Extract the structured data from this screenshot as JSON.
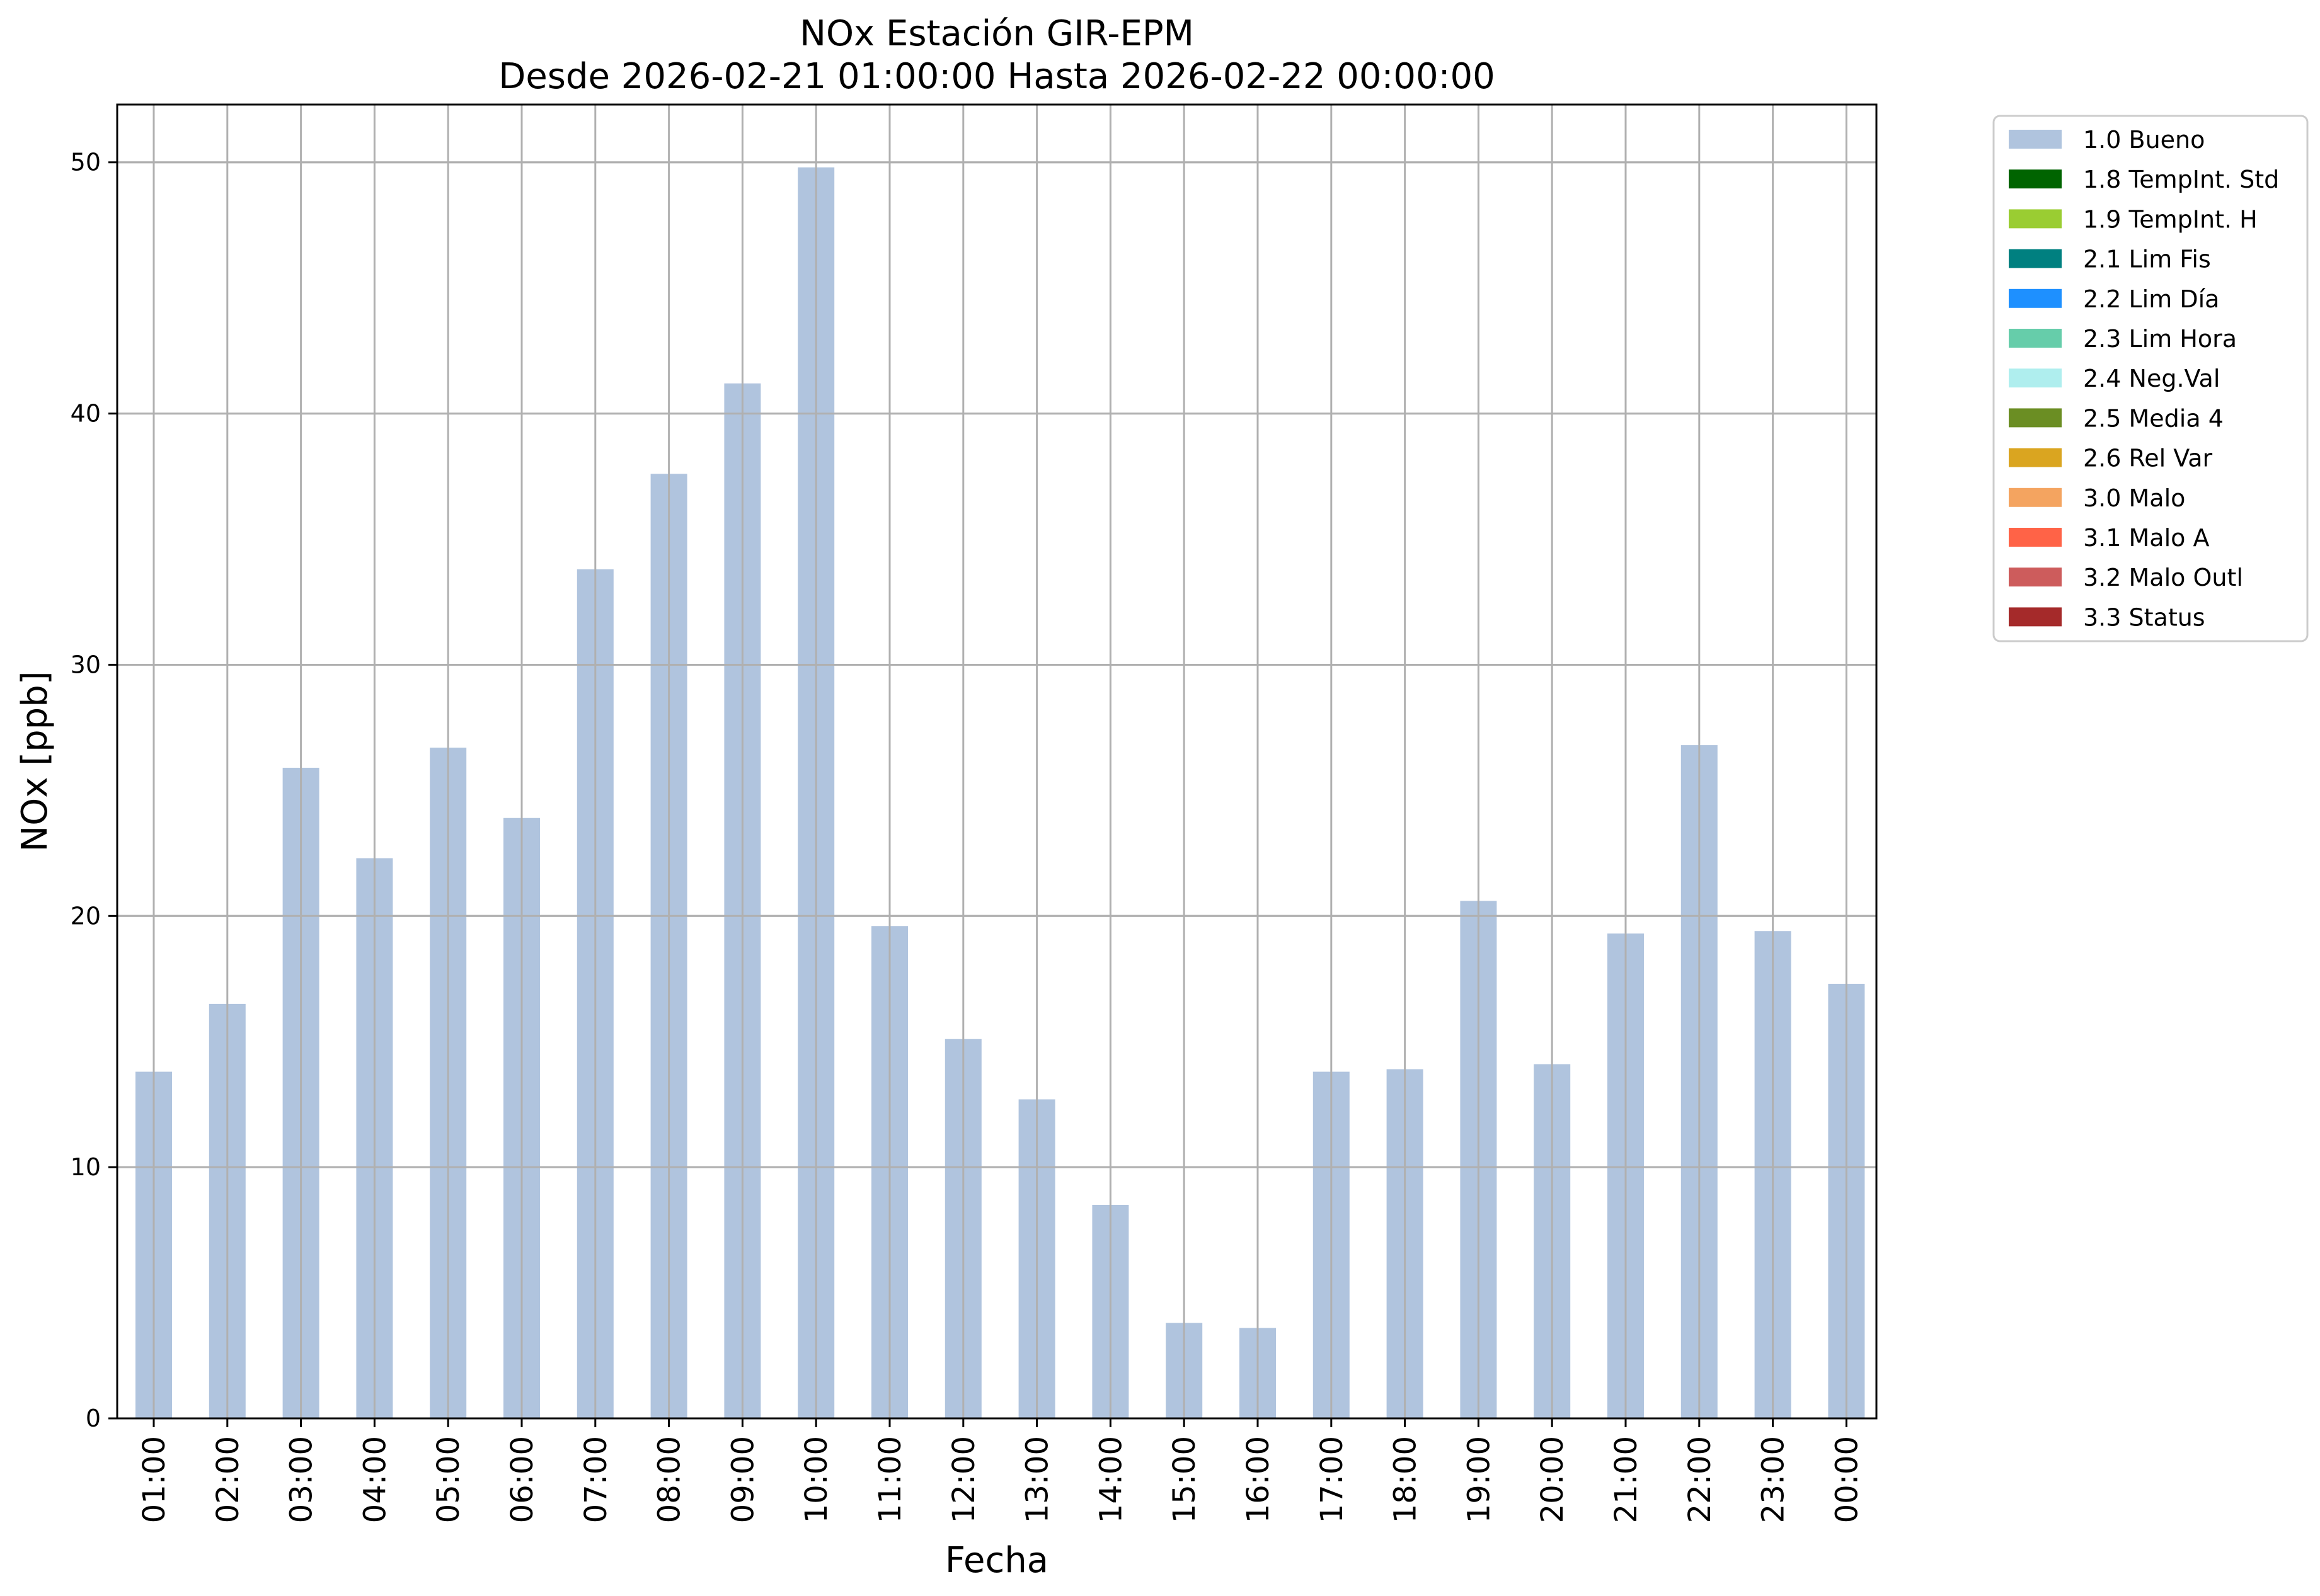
{
  "chart_data": {
    "type": "bar",
    "title": "NOx Estación GIR-EPM",
    "subtitle": "Desde 2026-02-21 01:00:00 Hasta 2026-02-22 00:00:00",
    "xlabel": "Fecha",
    "ylabel": "NOx [ppb]",
    "ylim": [
      0,
      52.3
    ],
    "yticks": [
      0,
      10,
      20,
      30,
      40,
      50
    ],
    "grid": true,
    "legend_position": "outside top-right",
    "categories": [
      "01:00",
      "02:00",
      "03:00",
      "04:00",
      "05:00",
      "06:00",
      "07:00",
      "08:00",
      "09:00",
      "10:00",
      "11:00",
      "12:00",
      "13:00",
      "14:00",
      "15:00",
      "16:00",
      "17:00",
      "18:00",
      "19:00",
      "20:00",
      "21:00",
      "22:00",
      "23:00",
      "00:00"
    ],
    "series": [
      {
        "name": "1.0 Bueno",
        "color": "#b0c4de",
        "values": [
          13.8,
          16.5,
          25.9,
          22.3,
          26.7,
          23.9,
          33.8,
          37.6,
          41.2,
          49.8,
          19.6,
          15.1,
          12.7,
          8.5,
          3.8,
          3.6,
          13.8,
          13.9,
          20.6,
          14.1,
          19.3,
          26.8,
          19.4,
          17.3
        ]
      }
    ],
    "legend": [
      {
        "label": "1.0 Bueno",
        "color": "#b0c4de"
      },
      {
        "label": "1.8 TempInt. Std",
        "color": "#006400"
      },
      {
        "label": "1.9 TempInt. H",
        "color": "#9acd32"
      },
      {
        "label": "2.1 Lim Fis",
        "color": "#008080"
      },
      {
        "label": "2.2 Lim Día",
        "color": "#1e90ff"
      },
      {
        "label": "2.3 Lim Hora",
        "color": "#66cdaa"
      },
      {
        "label": "2.4 Neg.Val",
        "color": "#afeeee"
      },
      {
        "label": "2.5 Media 4",
        "color": "#6b8e23"
      },
      {
        "label": "2.6 Rel Var",
        "color": "#daa520"
      },
      {
        "label": "3.0 Malo",
        "color": "#f4a460"
      },
      {
        "label": "3.1 Malo A",
        "color": "#ff6347"
      },
      {
        "label": "3.2 Malo Outl",
        "color": "#cd5c5c"
      },
      {
        "label": "3.3 Status",
        "color": "#a52a2a"
      }
    ]
  }
}
